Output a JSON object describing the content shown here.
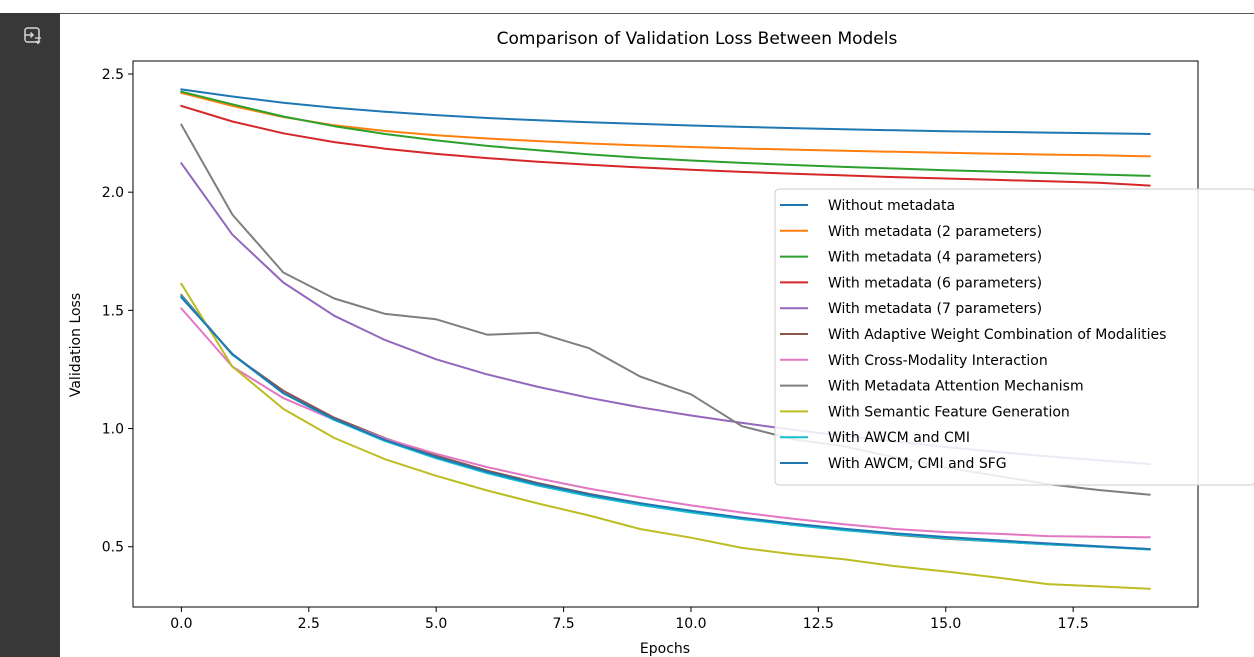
{
  "sidebar": {
    "icon": "output-toggle-icon"
  },
  "chart_data": {
    "type": "line",
    "title": "Comparison of Validation Loss Between Models",
    "xlabel": "Epochs",
    "ylabel": "Validation Loss",
    "xlim": [
      -0.95,
      19.95
    ],
    "ylim": [
      0.245,
      2.555
    ],
    "xticks": [
      0,
      2.5,
      5,
      7.5,
      10,
      12.5,
      15,
      17.5
    ],
    "xtick_labels": [
      "0.0",
      "2.5",
      "5.0",
      "7.5",
      "10.0",
      "12.5",
      "15.0",
      "17.5"
    ],
    "yticks": [
      0.5,
      1.0,
      1.5,
      2.0,
      2.5
    ],
    "ytick_labels": [
      "0.5",
      "1.0",
      "1.5",
      "2.0",
      "2.5"
    ],
    "grid": false,
    "legend_position": "center-right",
    "x": [
      0,
      1,
      2,
      3,
      4,
      5,
      6,
      7,
      8,
      9,
      10,
      11,
      12,
      13,
      14,
      15,
      16,
      17,
      18,
      19
    ],
    "series": [
      {
        "name": "Without metadata",
        "color": "#1f77b4",
        "values": [
          2.435,
          2.405,
          2.378,
          2.357,
          2.34,
          2.326,
          2.314,
          2.304,
          2.296,
          2.289,
          2.282,
          2.276,
          2.271,
          2.266,
          2.262,
          2.258,
          2.255,
          2.252,
          2.249,
          2.246
        ]
      },
      {
        "name": "With metadata (2 parameters)",
        "color": "#ff7f0e",
        "values": [
          2.42,
          2.365,
          2.318,
          2.283,
          2.259,
          2.241,
          2.227,
          2.216,
          2.206,
          2.198,
          2.191,
          2.185,
          2.18,
          2.175,
          2.171,
          2.167,
          2.163,
          2.159,
          2.156,
          2.152
        ]
      },
      {
        "name": "With metadata (4 parameters)",
        "color": "#2ca02c",
        "values": [
          2.425,
          2.372,
          2.32,
          2.279,
          2.246,
          2.219,
          2.196,
          2.177,
          2.16,
          2.146,
          2.134,
          2.124,
          2.115,
          2.107,
          2.1,
          2.093,
          2.087,
          2.081,
          2.075,
          2.069
        ]
      },
      {
        "name": "With metadata (6 parameters)",
        "color": "#d62728",
        "values": [
          2.365,
          2.299,
          2.249,
          2.212,
          2.184,
          2.162,
          2.144,
          2.129,
          2.116,
          2.105,
          2.095,
          2.086,
          2.078,
          2.071,
          2.064,
          2.058,
          2.052,
          2.046,
          2.04,
          2.028
        ]
      },
      {
        "name": "With metadata (7 parameters)",
        "color": "#9467bd",
        "values": [
          2.122,
          1.82,
          1.618,
          1.477,
          1.374,
          1.293,
          1.229,
          1.176,
          1.13,
          1.09,
          1.055,
          1.024,
          0.995,
          0.969,
          0.945,
          0.922,
          0.901,
          0.882,
          0.866,
          0.85
        ]
      },
      {
        "name": "With Adaptive Weight Combination of Modalities",
        "color": "#8c564b",
        "values": [
          1.565,
          1.312,
          1.16,
          1.046,
          0.959,
          0.885,
          0.822,
          0.769,
          0.724,
          0.684,
          0.65,
          0.62,
          0.594,
          0.571,
          0.551,
          0.534,
          0.522,
          0.51,
          0.5,
          0.49
        ]
      },
      {
        "name": "With Cross-Modality Interaction",
        "color": "#e377c2",
        "values": [
          1.508,
          1.262,
          1.129,
          1.037,
          0.957,
          0.893,
          0.837,
          0.789,
          0.746,
          0.709,
          0.675,
          0.645,
          0.618,
          0.595,
          0.575,
          0.562,
          0.555,
          0.545,
          0.542,
          0.54
        ]
      },
      {
        "name": "With Metadata Attention Mechanism",
        "color": "#7f7f7f",
        "values": [
          2.285,
          1.905,
          1.66,
          1.55,
          1.485,
          1.462,
          1.397,
          1.405,
          1.34,
          1.22,
          1.145,
          1.01,
          0.955,
          0.925,
          0.878,
          0.835,
          0.8,
          0.765,
          0.74,
          0.72
        ]
      },
      {
        "name": "With Semantic Feature Generation",
        "color": "#bcbd22",
        "values": [
          1.612,
          1.262,
          1.083,
          0.96,
          0.87,
          0.8,
          0.738,
          0.683,
          0.632,
          0.575,
          0.538,
          0.495,
          0.468,
          0.447,
          0.418,
          0.395,
          0.37,
          0.342,
          0.332,
          0.322
        ]
      },
      {
        "name": "With AWCM and CMI",
        "color": "#17becf",
        "values": [
          1.56,
          1.313,
          1.149,
          1.036,
          0.947,
          0.874,
          0.811,
          0.758,
          0.714,
          0.677,
          0.645,
          0.617,
          0.592,
          0.57,
          0.552,
          0.536,
          0.522,
          0.51,
          0.5,
          0.488
        ]
      },
      {
        "name": "With AWCM, CMI and SFG",
        "color": "#1f77b4",
        "values": [
          1.555,
          1.316,
          1.15,
          1.04,
          0.951,
          0.879,
          0.817,
          0.765,
          0.721,
          0.684,
          0.652,
          0.623,
          0.598,
          0.576,
          0.557,
          0.541,
          0.527,
          0.514,
          0.502,
          0.49
        ]
      }
    ]
  }
}
